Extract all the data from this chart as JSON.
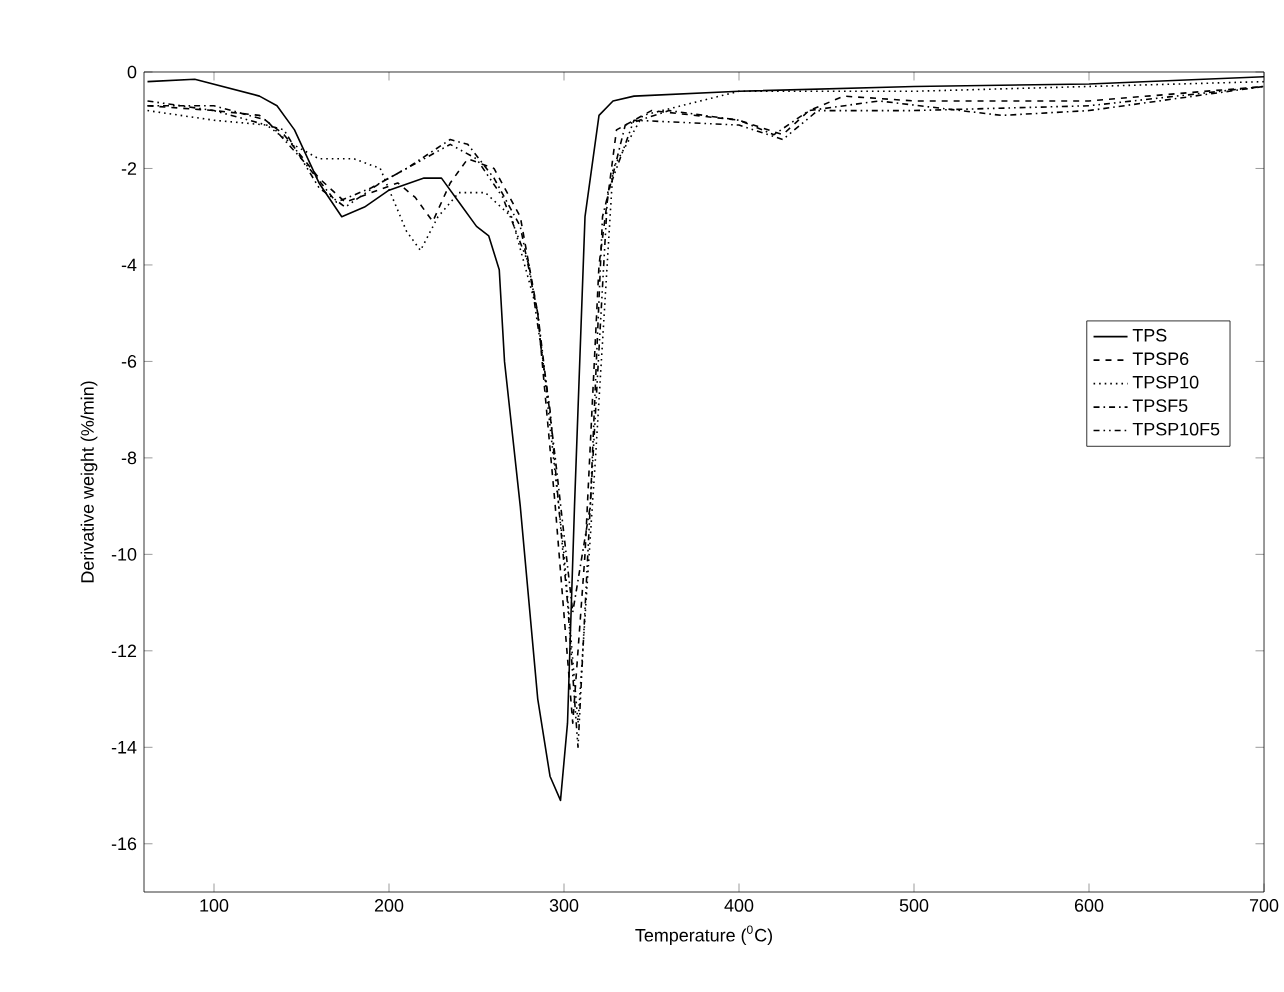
{
  "chart_data": {
    "type": "line",
    "xlabel": "Temperature ($^{0}$C)",
    "ylabel": "Derivative weight (%/min)",
    "xlim": [
      60,
      700
    ],
    "ylim": [
      -17,
      0
    ],
    "xticks": [
      100,
      200,
      300,
      400,
      500,
      600,
      700
    ],
    "yticks": [
      0,
      -2,
      -4,
      -6,
      -8,
      -10,
      -12,
      -14,
      -16
    ],
    "legend": "right",
    "grid": false,
    "series": [
      {
        "name": "TPS",
        "color": "#000000",
        "line_style": "solid",
        "x": [
          62,
          89,
          126,
          136,
          146,
          160,
          173,
          186,
          200,
          220,
          230,
          240,
          250,
          257,
          263,
          266,
          275,
          285,
          292,
          298,
          302,
          306,
          312,
          320,
          328,
          340,
          400,
          500,
          600,
          700
        ],
        "values": [
          -0.2,
          -0.15,
          -0.5,
          -0.7,
          -1.2,
          -2.3,
          -3.0,
          -2.8,
          -2.45,
          -2.2,
          -2.2,
          -2.7,
          -3.2,
          -3.4,
          -4.1,
          -6,
          -9,
          -13,
          -14.6,
          -15.1,
          -13.5,
          -9,
          -3,
          -0.9,
          -0.6,
          -0.5,
          -0.4,
          -0.3,
          -0.25,
          -0.1
        ]
      },
      {
        "name": "TPSP6",
        "color": "#000000",
        "line_style": "dashed",
        "x": [
          62,
          100,
          126,
          140,
          160,
          175,
          190,
          205,
          215,
          225,
          235,
          245,
          260,
          275,
          285,
          295,
          305,
          312,
          320,
          330,
          350,
          400,
          425,
          440,
          460,
          500,
          600,
          700
        ],
        "values": [
          -0.7,
          -0.8,
          -0.9,
          -1.3,
          -2.2,
          -2.7,
          -2.5,
          -2.3,
          -2.6,
          -3.1,
          -2.3,
          -1.8,
          -2.0,
          -3.0,
          -5,
          -9,
          -13.5,
          -10,
          -4,
          -1.2,
          -0.8,
          -1.0,
          -1.3,
          -0.8,
          -0.5,
          -0.6,
          -0.6,
          -0.3
        ]
      },
      {
        "name": "TPSP10",
        "color": "#000000",
        "line_style": "dotted",
        "x": [
          62,
          100,
          130,
          145,
          160,
          180,
          195,
          210,
          218,
          228,
          240,
          255,
          270,
          285,
          300,
          308,
          318,
          328,
          345,
          400,
          500,
          700
        ],
        "values": [
          -0.8,
          -1.0,
          -1.1,
          -1.5,
          -1.8,
          -1.8,
          -2.0,
          -3.3,
          -3.7,
          -3.0,
          -2.5,
          -2.5,
          -3.0,
          -5,
          -10,
          -13.5,
          -8,
          -2,
          -0.9,
          -0.4,
          -0.4,
          -0.2
        ]
      },
      {
        "name": "TPSF5",
        "color": "#000000",
        "line_style": "dashdot",
        "x": [
          62,
          100,
          130,
          150,
          170,
          190,
          210,
          235,
          245,
          260,
          275,
          285,
          295,
          305,
          315,
          322,
          335,
          360,
          400,
          420,
          440,
          480,
          550,
          600,
          700
        ],
        "values": [
          -0.7,
          -0.7,
          -1.0,
          -1.8,
          -2.7,
          -2.4,
          -2.0,
          -1.4,
          -1.5,
          -2.2,
          -3.2,
          -5,
          -8,
          -11.2,
          -9,
          -3,
          -1.1,
          -0.8,
          -1.0,
          -1.3,
          -0.8,
          -0.6,
          -0.9,
          -0.8,
          -0.3
        ]
      },
      {
        "name": "TPSP10F5",
        "color": "#000000",
        "line_style": "dashdotdot",
        "x": [
          62,
          100,
          140,
          160,
          175,
          195,
          215,
          235,
          250,
          265,
          280,
          292,
          302,
          308,
          315,
          325,
          340,
          400,
          425,
          445,
          500,
          600,
          700
        ],
        "values": [
          -0.6,
          -0.8,
          -1.2,
          -2.4,
          -2.8,
          -2.3,
          -1.9,
          -1.5,
          -1.8,
          -2.6,
          -4,
          -7,
          -11,
          -14,
          -9,
          -2.5,
          -1.0,
          -1.1,
          -1.4,
          -0.8,
          -0.8,
          -0.7,
          -0.3
        ]
      }
    ]
  }
}
